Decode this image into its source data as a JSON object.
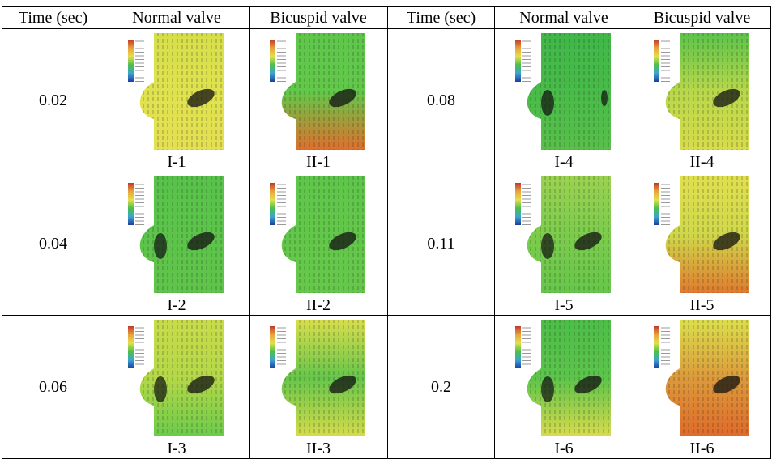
{
  "table": {
    "header": [
      "Time (sec)",
      "Normal valve",
      "Bicuspid valve",
      "Time (sec)",
      "Normal valve",
      "Bicuspid valve"
    ],
    "rows": [
      [
        "0.02",
        "I-1",
        "II-1",
        "0.08",
        "I-4",
        "II-4"
      ],
      [
        "0.04",
        "I-2",
        "II-2",
        "0.11",
        "I-5",
        "II-5"
      ],
      [
        "0.06",
        "I-3",
        "II-3",
        "0.2",
        "I-6",
        "II-6"
      ]
    ]
  }
}
